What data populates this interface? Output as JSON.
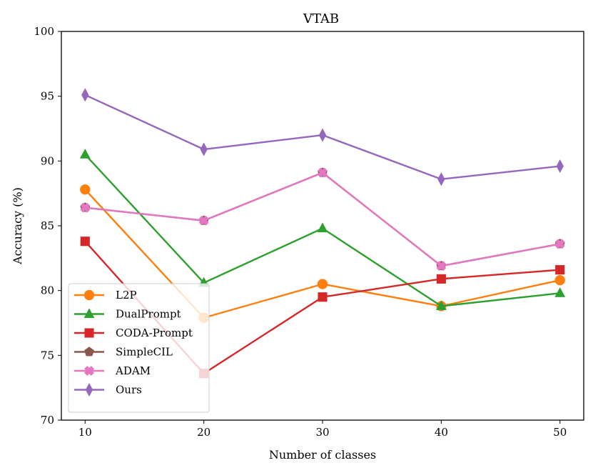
{
  "chart_data": {
    "type": "line",
    "title": "VTAB",
    "xlabel": "Number of classes",
    "ylabel": "Accuracy (%)",
    "x": [
      10,
      20,
      30,
      40,
      50
    ],
    "xticks": [
      "10",
      "20",
      "30",
      "40",
      "50"
    ],
    "xlim": [
      8,
      52
    ],
    "ylim": [
      70,
      100
    ],
    "yticks": [
      "70",
      "75",
      "80",
      "85",
      "90",
      "95",
      "100"
    ],
    "grid": false,
    "legend_position": "lower-left",
    "series": [
      {
        "name": "L2P",
        "color": "#ff7f0e",
        "marker": "circle",
        "values": [
          87.8,
          77.9,
          80.5,
          78.8,
          80.8
        ]
      },
      {
        "name": "DualPrompt",
        "color": "#2ca02c",
        "marker": "triangle",
        "values": [
          90.5,
          80.6,
          84.8,
          78.8,
          79.8
        ]
      },
      {
        "name": "CODA-Prompt",
        "color": "#d62728",
        "marker": "square",
        "values": [
          83.8,
          73.6,
          79.5,
          80.9,
          81.6
        ]
      },
      {
        "name": "SimpleCIL",
        "color": "#8c564b",
        "marker": "pentagon",
        "values": [
          86.4,
          85.4,
          89.1,
          81.9,
          83.6
        ]
      },
      {
        "name": "ADAM",
        "color": "#e377c2",
        "marker": "plus-x",
        "values": [
          86.4,
          85.4,
          89.1,
          81.9,
          83.6
        ]
      },
      {
        "name": "Ours",
        "color": "#9467bd",
        "marker": "diamond",
        "values": [
          95.1,
          90.9,
          92.0,
          88.6,
          89.6
        ]
      }
    ]
  }
}
